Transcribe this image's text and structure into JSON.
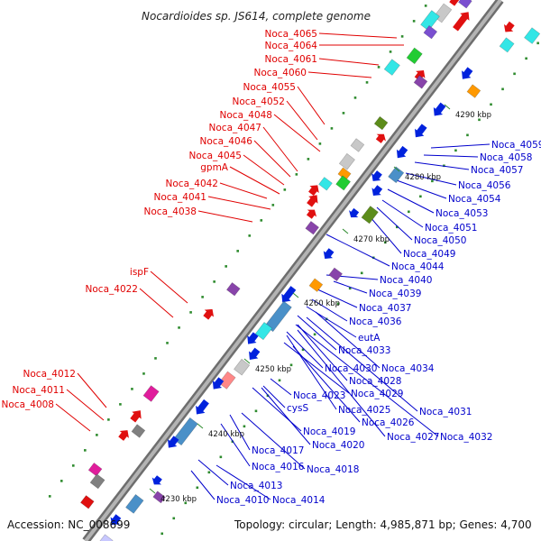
{
  "title": "Nocardioides sp. JS614, complete genome",
  "footer": {
    "accession": "Accession: NC_008699",
    "topology": "Topology: circular; Length: 4,985,871 bp; Genes: 4,700"
  },
  "colors": {
    "backbone": "#8c8c8c",
    "label_red": "#e00000",
    "label_blue": "#0000cc",
    "tick": "#2e8b2e"
  },
  "kbp_ticks": [
    "4230 kbp",
    "4240 kbp",
    "4250 kbp",
    "4260 kbp",
    "4270 kbp",
    "4280 kbp",
    "4290 kbp"
  ],
  "labels_red": [
    "Noca_4065",
    "Noca_4064",
    "Noca_4061",
    "Noca_4060",
    "Noca_4055",
    "Noca_4052",
    "Noca_4048",
    "Noca_4047",
    "Noca_4046",
    "Noca_4045",
    "gpmA",
    "Noca_4042",
    "Noca_4041",
    "Noca_4038",
    "ispF",
    "Noca_4022",
    "Noca_4012",
    "Noca_4011",
    "Noca_4008"
  ],
  "labels_blue": [
    "Noca_4059",
    "Noca_4058",
    "Noca_4057",
    "Noca_4056",
    "Noca_4054",
    "Noca_4053",
    "Noca_4051",
    "Noca_4050",
    "Noca_4049",
    "Noca_4044",
    "Noca_4040",
    "Noca_4039",
    "Noca_4037",
    "Noca_4036",
    "eutA",
    "Noca_4033",
    "Noca_4034",
    "Noca_4030",
    "Noca_4028",
    "Noca_4029",
    "Noca_4023",
    "cysS",
    "Noca_4025",
    "Noca_4031",
    "Noca_4026",
    "Noca_4019",
    "Noca_4027",
    "Noca_4032",
    "Noca_4020",
    "Noca_4017",
    "Noca_4016",
    "Noca_4018",
    "Noca_4013",
    "Noca_4010",
    "Noca_4014"
  ]
}
